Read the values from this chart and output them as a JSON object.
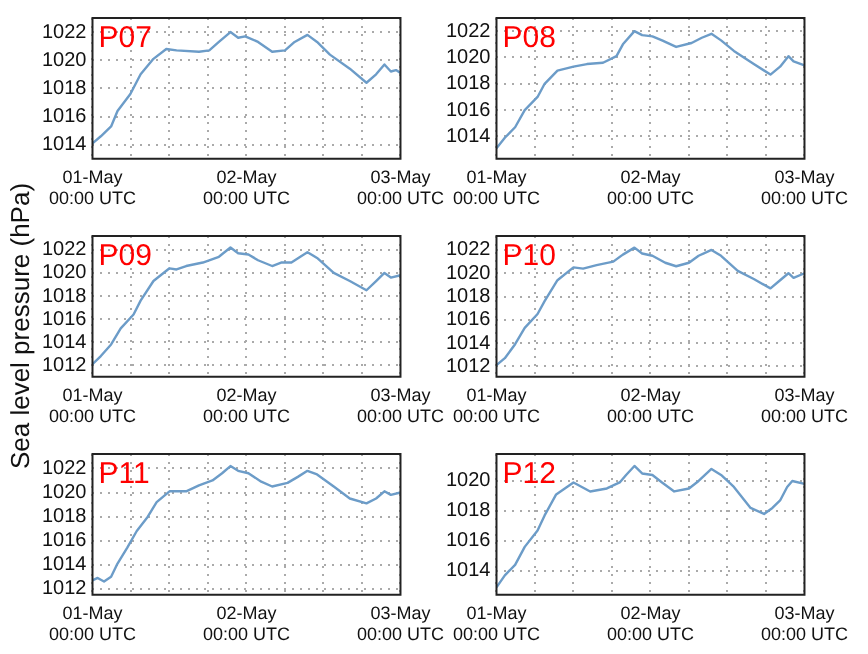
{
  "chart_data": [
    {
      "type": "line",
      "title": "P07",
      "color": "#6c9cc8",
      "grid": true,
      "line_style": "solid",
      "xlim": [
        "--05-01T00:00",
        "--05-03T00:00"
      ],
      "ylim": [
        1013,
        1023
      ],
      "xticks": [
        {
          "value": "--05-01T00:00",
          "label": "01-May\n00:00 UTC"
        },
        {
          "value": "--05-01T06:00",
          "label": null
        },
        {
          "value": "--05-01T12:00",
          "label": null
        },
        {
          "value": "--05-01T18:00",
          "label": null
        },
        {
          "value": "--05-02T00:00",
          "label": "02-May\n00:00 UTC"
        },
        {
          "value": "--05-02T06:00",
          "label": null
        },
        {
          "value": "--05-02T12:00",
          "label": null
        },
        {
          "value": "--05-02T18:00",
          "label": null
        },
        {
          "value": "--05-03T00:00",
          "label": "03-May\n00:00 UTC"
        }
      ],
      "yticks": [
        1014,
        1016,
        1018,
        1020,
        1022
      ],
      "x": [
        "--05-01T00:00",
        "--05-01T01:18",
        "--05-01T02:54",
        "--05-01T03:54",
        "--05-01T05:54",
        "--05-01T07:30",
        "--05-01T09:30",
        "--05-01T11:30",
        "--05-01T13:06",
        "--05-01T16:36",
        "--05-01T18:12",
        "--05-01T19:42",
        "--05-01T21:30",
        "--05-01T22:42",
        "--05-01T23:48",
        "--05-02T01:48",
        "--05-02T04:00",
        "--05-02T06:00",
        "--05-02T07:30",
        "--05-02T09:30",
        "--05-02T11:00",
        "--05-02T13:00",
        "--05-02T16:06",
        "--05-02T18:42",
        "--05-02T20:12",
        "--05-02T21:30",
        "--05-02T22:30",
        "--05-02T23:18",
        "--05-03T00:00"
      ],
      "values": [
        1014.1,
        1014.6,
        1015.3,
        1016.4,
        1017.6,
        1019,
        1020.1,
        1020.8,
        1020.7,
        1020.6,
        1020.7,
        1021.3,
        1022,
        1021.6,
        1021.7,
        1021.3,
        1020.6,
        1020.7,
        1021.3,
        1021.8,
        1021.3,
        1020.4,
        1019.4,
        1018.4,
        1019,
        1019.7,
        1019.2,
        1019.3,
        1019.1
      ]
    },
    {
      "type": "line",
      "title": "P08",
      "color": "#6c9cc8",
      "grid": true,
      "line_style": "solid",
      "xlim": [
        "--05-01T00:00",
        "--05-03T00:00"
      ],
      "ylim": [
        1012.3,
        1023
      ],
      "xticks": [
        {
          "value": "--05-01T00:00",
          "label": "01-May\n00:00 UTC"
        },
        {
          "value": "--05-01T06:00",
          "label": null
        },
        {
          "value": "--05-01T12:00",
          "label": null
        },
        {
          "value": "--05-01T18:00",
          "label": null
        },
        {
          "value": "--05-02T00:00",
          "label": "02-May\n00:00 UTC"
        },
        {
          "value": "--05-02T06:00",
          "label": null
        },
        {
          "value": "--05-02T12:00",
          "label": null
        },
        {
          "value": "--05-02T18:00",
          "label": null
        },
        {
          "value": "--05-03T00:00",
          "label": "03-May\n00:00 UTC"
        }
      ],
      "yticks": [
        1014,
        1016,
        1018,
        1020,
        1022
      ],
      "x": [
        "--05-01T00:00",
        "--05-01T01:18",
        "--05-01T02:54",
        "--05-01T04:24",
        "--05-01T06:24",
        "--05-01T07:30",
        "--05-01T09:30",
        "--05-01T12:00",
        "--05-01T14:06",
        "--05-01T16:36",
        "--05-01T18:42",
        "--05-01T19:42",
        "--05-01T21:30",
        "--05-01T22:42",
        "--05-02T00:18",
        "--05-02T01:48",
        "--05-02T04:00",
        "--05-02T06:24",
        "--05-02T08:00",
        "--05-02T09:30",
        "--05-02T11:00",
        "--05-02T13:00",
        "--05-02T16:06",
        "--05-02T18:42",
        "--05-02T20:12",
        "--05-02T21:30",
        "--05-02T22:18",
        "--05-03T00:00"
      ],
      "values": [
        1013.1,
        1013.9,
        1014.7,
        1016,
        1017,
        1018,
        1019,
        1019.3,
        1019.5,
        1019.6,
        1020.1,
        1021,
        1022,
        1021.7,
        1021.6,
        1021.3,
        1020.8,
        1021.1,
        1021.5,
        1021.8,
        1021.3,
        1020.5,
        1019.5,
        1018.7,
        1019.3,
        1020.1,
        1019.7,
        1019.4
      ]
    },
    {
      "type": "line",
      "title": "P09",
      "ylabel": "Sea level pressure (hPa)",
      "color": "#6c9cc8",
      "grid": true,
      "line_style": "solid",
      "xlim": [
        "--05-01T00:00",
        "--05-03T00:00"
      ],
      "ylim": [
        1011,
        1023.2
      ],
      "xticks": [
        {
          "value": "--05-01T00:00",
          "label": "01-May\n00:00 UTC"
        },
        {
          "value": "--05-01T06:00",
          "label": null
        },
        {
          "value": "--05-01T12:00",
          "label": null
        },
        {
          "value": "--05-01T18:00",
          "label": null
        },
        {
          "value": "--05-02T00:00",
          "label": "02-May\n00:00 UTC"
        },
        {
          "value": "--05-02T06:00",
          "label": null
        },
        {
          "value": "--05-02T12:00",
          "label": null
        },
        {
          "value": "--05-02T18:00",
          "label": null
        },
        {
          "value": "--05-03T00:00",
          "label": "03-May\n00:00 UTC"
        }
      ],
      "yticks": [
        1012,
        1014,
        1016,
        1018,
        1020,
        1022
      ],
      "x": [
        "--05-01T00:00",
        "--05-01T01:18",
        "--05-01T02:54",
        "--05-01T04:24",
        "--05-01T06:24",
        "--05-01T07:30",
        "--05-01T09:30",
        "--05-01T12:00",
        "--05-01T13:06",
        "--05-01T14:36",
        "--05-01T17:12",
        "--05-01T19:42",
        "--05-01T21:30",
        "--05-01T22:42",
        "--05-02T00:18",
        "--05-02T01:48",
        "--05-02T04:00",
        "--05-02T05:24",
        "--05-02T07:00",
        "--05-02T09:30",
        "--05-02T11:00",
        "--05-02T13:36",
        "--05-02T16:06",
        "--05-02T18:42",
        "--05-02T20:12",
        "--05-02T21:30",
        "--05-02T22:30",
        "--05-03T00:00"
      ],
      "values": [
        1012.1,
        1012.8,
        1013.8,
        1015.2,
        1016.4,
        1017.6,
        1019.3,
        1020.4,
        1020.3,
        1020.6,
        1020.9,
        1021.4,
        1022.2,
        1021.7,
        1021.6,
        1021.1,
        1020.6,
        1020.9,
        1020.9,
        1021.8,
        1021.3,
        1020,
        1019.3,
        1018.5,
        1019.3,
        1020,
        1019.6,
        1019.8
      ]
    },
    {
      "type": "line",
      "title": "P10",
      "color": "#6c9cc8",
      "grid": true,
      "line_style": "solid",
      "xlim": [
        "--05-01T00:00",
        "--05-03T00:00"
      ],
      "ylim": [
        1011.1,
        1023.2
      ],
      "xticks": [
        {
          "value": "--05-01T00:00",
          "label": "01-May\n00:00 UTC"
        },
        {
          "value": "--05-01T06:00",
          "label": null
        },
        {
          "value": "--05-01T12:00",
          "label": null
        },
        {
          "value": "--05-01T18:00",
          "label": null
        },
        {
          "value": "--05-02T00:00",
          "label": "02-May\n00:00 UTC"
        },
        {
          "value": "--05-02T06:00",
          "label": null
        },
        {
          "value": "--05-02T12:00",
          "label": null
        },
        {
          "value": "--05-02T18:00",
          "label": null
        },
        {
          "value": "--05-03T00:00",
          "label": "03-May\n00:00 UTC"
        }
      ],
      "yticks": [
        1012,
        1014,
        1016,
        1018,
        1020,
        1022
      ],
      "x": [
        "--05-01T00:00",
        "--05-01T01:18",
        "--05-01T02:54",
        "--05-01T04:24",
        "--05-01T06:24",
        "--05-01T07:30",
        "--05-01T09:30",
        "--05-01T12:00",
        "--05-01T13:30",
        "--05-01T15:36",
        "--05-01T18:12",
        "--05-01T19:42",
        "--05-01T21:30",
        "--05-01T22:42",
        "--05-02T00:18",
        "--05-02T02:18",
        "--05-02T04:00",
        "--05-02T06:00",
        "--05-02T07:30",
        "--05-02T09:30",
        "--05-02T11:00",
        "--05-02T13:36",
        "--05-02T16:06",
        "--05-02T18:42",
        "--05-02T20:12",
        "--05-02T21:30",
        "--05-02T22:18",
        "--05-03T00:00"
      ],
      "values": [
        1012.1,
        1012.7,
        1013.9,
        1015.3,
        1016.5,
        1017.6,
        1019.4,
        1020.5,
        1020.4,
        1020.7,
        1021,
        1021.6,
        1022.2,
        1021.7,
        1021.5,
        1020.9,
        1020.6,
        1020.9,
        1021.5,
        1022,
        1021.5,
        1020.2,
        1019.5,
        1018.7,
        1019.4,
        1020,
        1019.6,
        1020
      ]
    },
    {
      "type": "line",
      "title": "P11",
      "color": "#6c9cc8",
      "grid": true,
      "line_style": "solid",
      "xlim": [
        "--05-01T00:00",
        "--05-03T00:00"
      ],
      "ylim": [
        1011.5,
        1023.2
      ],
      "xticks": [
        {
          "value": "--05-01T00:00",
          "label": "01-May\n00:00 UTC"
        },
        {
          "value": "--05-01T06:00",
          "label": null
        },
        {
          "value": "--05-01T12:00",
          "label": null
        },
        {
          "value": "--05-01T18:00",
          "label": null
        },
        {
          "value": "--05-02T00:00",
          "label": "02-May\n00:00 UTC"
        },
        {
          "value": "--05-02T06:00",
          "label": null
        },
        {
          "value": "--05-02T12:00",
          "label": null
        },
        {
          "value": "--05-02T18:00",
          "label": null
        },
        {
          "value": "--05-03T00:00",
          "label": "03-May\n00:00 UTC"
        }
      ],
      "yticks": [
        1012,
        1014,
        1016,
        1018,
        1020,
        1022
      ],
      "x": [
        "--05-01T00:00",
        "--05-01T00:48",
        "--05-01T01:48",
        "--05-01T02:54",
        "--05-01T03:54",
        "--05-01T05:24",
        "--05-01T06:54",
        "--05-01T08:30",
        "--05-01T10:00",
        "--05-01T12:00",
        "--05-01T14:36",
        "--05-01T16:36",
        "--05-01T18:42",
        "--05-01T20:12",
        "--05-01T21:30",
        "--05-01T22:42",
        "--05-02T00:18",
        "--05-02T02:18",
        "--05-02T04:00",
        "--05-02T06:24",
        "--05-02T08:00",
        "--05-02T09:30",
        "--05-02T11:00",
        "--05-02T13:36",
        "--05-02T16:06",
        "--05-02T18:42",
        "--05-02T20:12",
        "--05-02T21:30",
        "--05-02T22:30",
        "--05-03T00:00"
      ],
      "values": [
        1012.7,
        1012.9,
        1012.6,
        1013,
        1014.1,
        1015.4,
        1016.8,
        1017.9,
        1019.2,
        1020.1,
        1020.1,
        1020.6,
        1021,
        1021.6,
        1022.2,
        1021.8,
        1021.6,
        1020.9,
        1020.5,
        1020.8,
        1021.3,
        1021.8,
        1021.5,
        1020.5,
        1019.5,
        1019.1,
        1019.5,
        1020.1,
        1019.8,
        1020
      ]
    },
    {
      "type": "line",
      "title": "P12",
      "color": "#6c9cc8",
      "grid": true,
      "line_style": "solid",
      "xlim": [
        "--05-01T00:00",
        "--05-03T00:00"
      ],
      "ylim": [
        1012.4,
        1021.8
      ],
      "xticks": [
        {
          "value": "--05-01T00:00",
          "label": "01-May\n00:00 UTC"
        },
        {
          "value": "--05-01T06:00",
          "label": null
        },
        {
          "value": "--05-01T12:00",
          "label": null
        },
        {
          "value": "--05-01T18:00",
          "label": null
        },
        {
          "value": "--05-02T00:00",
          "label": "02-May\n00:00 UTC"
        },
        {
          "value": "--05-02T06:00",
          "label": null
        },
        {
          "value": "--05-02T12:00",
          "label": null
        },
        {
          "value": "--05-02T18:00",
          "label": null
        },
        {
          "value": "--05-03T00:00",
          "label": "03-May\n00:00 UTC"
        }
      ],
      "yticks": [
        1014,
        1016,
        1018,
        1020
      ],
      "x": [
        "--05-01T00:00",
        "--05-01T01:18",
        "--05-01T02:54",
        "--05-01T04:24",
        "--05-01T06:24",
        "--05-01T07:30",
        "--05-01T09:18",
        "--05-01T12:00",
        "--05-01T14:36",
        "--05-01T17:12",
        "--05-01T19:12",
        "--05-01T20:12",
        "--05-01T21:30",
        "--05-01T22:42",
        "--05-02T00:18",
        "--05-02T01:48",
        "--05-02T03:42",
        "--05-02T06:00",
        "--05-02T07:30",
        "--05-02T09:30",
        "--05-02T11:00",
        "--05-02T13:00",
        "--05-02T15:36",
        "--05-02T17:42",
        "--05-02T19:00",
        "--05-02T20:12",
        "--05-02T21:18",
        "--05-02T22:06",
        "--05-03T00:00"
      ],
      "values": [
        1012.9,
        1013.7,
        1014.4,
        1015.6,
        1016.7,
        1017.7,
        1019.1,
        1019.9,
        1019.3,
        1019.5,
        1019.9,
        1020.4,
        1021,
        1020.5,
        1020.4,
        1019.9,
        1019.3,
        1019.5,
        1020,
        1020.8,
        1020.4,
        1019.6,
        1018.2,
        1017.8,
        1018.2,
        1018.7,
        1019.6,
        1020,
        1019.8
      ]
    }
  ]
}
